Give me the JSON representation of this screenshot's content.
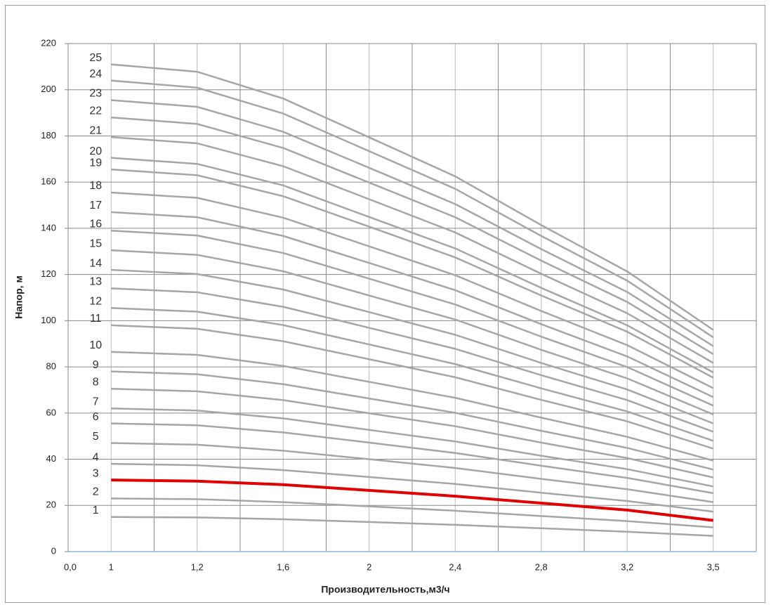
{
  "chart_data": {
    "type": "line",
    "x_label": "Производительность,м3/ч",
    "y_label": "Напор, м",
    "x_origin_label": "0,0",
    "categories": [
      "1",
      "1,2",
      "1,6",
      "2",
      "2,4",
      "2,8",
      "3,2",
      "3,5"
    ],
    "ylim": [
      0,
      220
    ],
    "yticks": [
      0,
      20,
      40,
      60,
      80,
      100,
      120,
      140,
      160,
      180,
      200,
      220
    ],
    "grid": true,
    "series": [
      {
        "name": "1",
        "color": "#a6a6a6",
        "values": [
          15,
          14.8,
          14,
          12.8,
          11.6,
          10.1,
          8.6,
          6.8
        ]
      },
      {
        "name": "2",
        "color": "#a6a6a6",
        "values": [
          23,
          22.7,
          21.4,
          19.6,
          17.7,
          15.4,
          13.2,
          10.5
        ]
      },
      {
        "name": "3",
        "color": "#e00000",
        "values": [
          31,
          30.5,
          29,
          26.5,
          24,
          21,
          18,
          13.5
        ]
      },
      {
        "name": "4",
        "color": "#a6a6a6",
        "values": [
          38,
          37.4,
          35.3,
          32.3,
          29.3,
          25.5,
          21.9,
          17.3
        ]
      },
      {
        "name": "5",
        "color": "#a6a6a6",
        "values": [
          47,
          46.3,
          43.7,
          40,
          36.2,
          31.5,
          27,
          21.4
        ]
      },
      {
        "name": "6",
        "color": "#a6a6a6",
        "values": [
          55.5,
          54.7,
          51.6,
          47.2,
          42.7,
          37.2,
          31.9,
          25.3
        ]
      },
      {
        "name": "7",
        "color": "#a6a6a6",
        "values": [
          62,
          61.1,
          57.7,
          52.7,
          47.7,
          41.5,
          35.7,
          28.2
        ]
      },
      {
        "name": "8",
        "color": "#a6a6a6",
        "values": [
          70.5,
          69.4,
          65.6,
          59.9,
          54.3,
          47.2,
          40.5,
          32.1
        ]
      },
      {
        "name": "9",
        "color": "#a6a6a6",
        "values": [
          78,
          76.8,
          72.5,
          66.3,
          60.1,
          52.3,
          44.9,
          35.5
        ]
      },
      {
        "name": "10",
        "color": "#a6a6a6",
        "values": [
          86.5,
          85.2,
          80.4,
          73.5,
          66.6,
          58,
          49.7,
          39.4
        ]
      },
      {
        "name": "11",
        "color": "#a6a6a6",
        "values": [
          98,
          96.5,
          91.1,
          83.3,
          75.5,
          65.7,
          56.4,
          44.6
        ]
      },
      {
        "name": "12",
        "color": "#a6a6a6",
        "values": [
          105.5,
          103.9,
          98.1,
          89.7,
          81.2,
          70.7,
          60.7,
          48
        ]
      },
      {
        "name": "13",
        "color": "#a6a6a6",
        "values": [
          114,
          112.3,
          106,
          96.9,
          87.8,
          76.4,
          65.6,
          51.9
        ]
      },
      {
        "name": "14",
        "color": "#a6a6a6",
        "values": [
          122,
          120.2,
          113.5,
          103.7,
          93.9,
          81.7,
          70.2,
          55.5
        ]
      },
      {
        "name": "15",
        "color": "#a6a6a6",
        "values": [
          130.5,
          128.5,
          121.4,
          110.9,
          100.5,
          87.4,
          75,
          59.4
        ]
      },
      {
        "name": "16",
        "color": "#a6a6a6",
        "values": [
          139,
          136.9,
          129.3,
          118.2,
          107,
          93.1,
          79.9,
          63.2
        ]
      },
      {
        "name": "17",
        "color": "#a6a6a6",
        "values": [
          147,
          144.8,
          136.7,
          125,
          113.2,
          98.5,
          84.5,
          66.9
        ]
      },
      {
        "name": "18",
        "color": "#a6a6a6",
        "values": [
          155.5,
          153.2,
          144.6,
          132.2,
          119.7,
          104.2,
          89.4,
          70.8
        ]
      },
      {
        "name": "19",
        "color": "#a6a6a6",
        "values": [
          165.5,
          163,
          153.9,
          140.7,
          127.4,
          110.9,
          95.2,
          75.3
        ]
      },
      {
        "name": "20",
        "color": "#a6a6a6",
        "values": [
          170.5,
          167.9,
          158.6,
          144.9,
          131.3,
          114.2,
          98,
          77.6
        ]
      },
      {
        "name": "21",
        "color": "#a6a6a6",
        "values": [
          179.5,
          176.8,
          166.9,
          152.6,
          138.2,
          120.3,
          103.2,
          81.7
        ]
      },
      {
        "name": "22",
        "color": "#a6a6a6",
        "values": [
          188,
          185.2,
          174.8,
          159.8,
          144.8,
          126,
          108.1,
          85.5
        ]
      },
      {
        "name": "23",
        "color": "#a6a6a6",
        "values": [
          195.5,
          192.6,
          181.8,
          166.2,
          150.5,
          131,
          112.4,
          89
        ]
      },
      {
        "name": "24",
        "color": "#a6a6a6",
        "values": [
          204,
          200.9,
          189.7,
          173.4,
          157.1,
          136.7,
          117.3,
          92.8
        ]
      },
      {
        "name": "25",
        "color": "#a6a6a6",
        "values": [
          211,
          207.8,
          196.2,
          179.4,
          162.5,
          141.4,
          121.3,
          96
        ]
      }
    ]
  }
}
